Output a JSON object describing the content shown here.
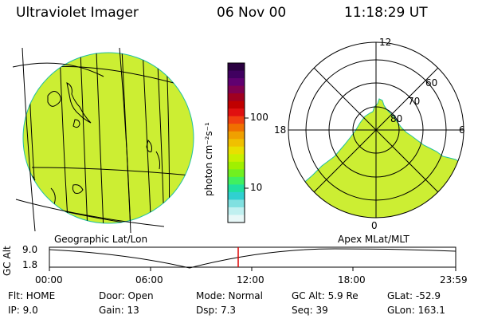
{
  "header": {
    "instrument": "Ultraviolet Imager",
    "date": "06 Nov 00",
    "time": "11:18:29 UT"
  },
  "colorbar": {
    "unit_label": "photon cm⁻²s⁻¹",
    "tick_labels": [
      "100",
      "10"
    ],
    "colors": [
      "#2a0040",
      "#400060",
      "#600070",
      "#800050",
      "#a00020",
      "#c00000",
      "#e01010",
      "#f04010",
      "#f07000",
      "#f0a000",
      "#f0c000",
      "#e8e000",
      "#c8f000",
      "#a0f000",
      "#70f020",
      "#40f060",
      "#20e0a0",
      "#30d0d0",
      "#80e0e0",
      "#c0f0f0",
      "#e8f8f8"
    ]
  },
  "left_panel": {
    "label": "Geographic Lat/Lon",
    "fill_color": "#ccee33"
  },
  "right_panel": {
    "label": "Apex MLat/MLT",
    "mlt_labels": {
      "top": "12",
      "left": "18",
      "right": "6",
      "bottom": "0"
    },
    "lat_labels": [
      "60",
      "70",
      "80"
    ],
    "fill_color": "#ccee33"
  },
  "altitude_plot": {
    "axis_title": "GC Alt",
    "y_labels": [
      "9.0",
      "1.8"
    ],
    "x_labels": [
      "00:00",
      "06:00",
      "12:00",
      "18:00",
      "23:59"
    ],
    "marker_color": "#dd0000"
  },
  "info": {
    "row1": {
      "flt": "Flt: HOME",
      "door": "Door: Open",
      "mode": "Mode: Normal",
      "gcalt": "GC Alt: 5.9 Re",
      "glat": "GLat: -52.9"
    },
    "row2": {
      "ip": "IP:  9.0",
      "gain": "Gain: 13",
      "dsp": "Dsp:     7.3",
      "seq": "Seq: 39",
      "glon": "GLon: 163.1"
    }
  }
}
